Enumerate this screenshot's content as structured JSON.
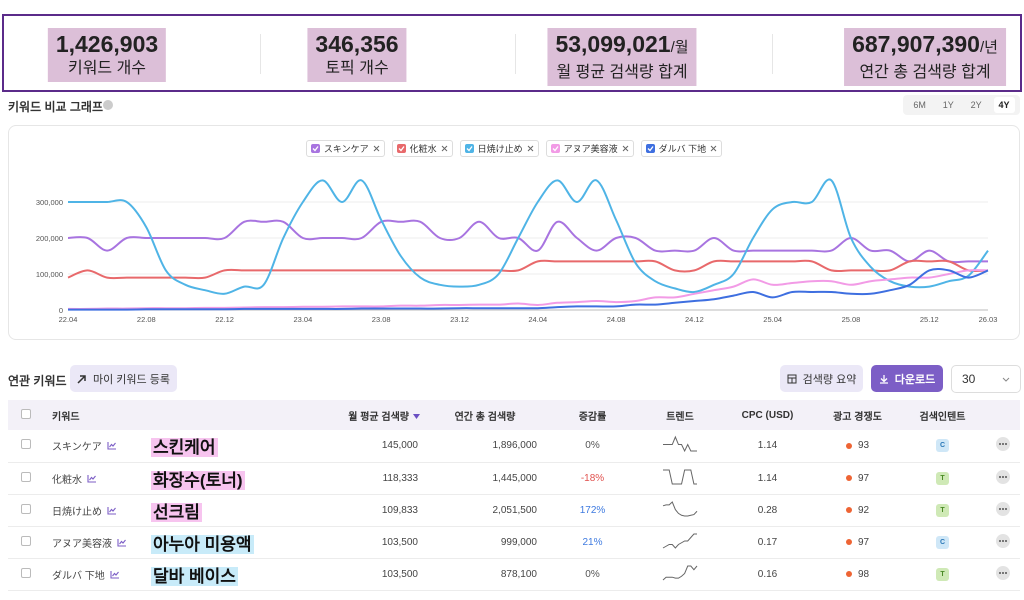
{
  "stats": [
    {
      "value": "1,426,903",
      "label": "키워드 개수"
    },
    {
      "value": "346,356",
      "label": "토픽 개수"
    },
    {
      "value": "53,099,021",
      "unit": "/월",
      "label": "월 평균 검색량 합계"
    },
    {
      "value": "687,907,390",
      "unit": "/년",
      "label": "연간 총 검색량 합계"
    }
  ],
  "graph_panel": {
    "title": "키워드 비교 그래프",
    "ranges": [
      "6M",
      "1Y",
      "2Y",
      "4Y"
    ],
    "active_range": "4Y"
  },
  "chart_data": {
    "type": "line",
    "categories": [
      "22.04",
      null,
      null,
      null,
      "22.08",
      null,
      null,
      null,
      "22.12",
      null,
      null,
      null,
      "23.04",
      null,
      null,
      null,
      "23.08",
      null,
      null,
      null,
      "23.12",
      null,
      null,
      null,
      "24.04",
      null,
      null,
      null,
      "24.08",
      null,
      null,
      null,
      "24.12",
      null,
      null,
      null,
      "25.04",
      null,
      null,
      null,
      "25.08",
      null,
      null,
      null,
      "25.12",
      null,
      null,
      "26.03"
    ],
    "series": [
      {
        "name": "スキンケア",
        "color": "#a874e0",
        "values": [
          200000,
          200000,
          165000,
          200000,
          200000,
          200000,
          200000,
          200000,
          200000,
          245000,
          245000,
          245000,
          200000,
          200000,
          200000,
          200000,
          245000,
          245000,
          245000,
          200000,
          200000,
          245000,
          200000,
          200000,
          165000,
          245000,
          200000,
          165000,
          200000,
          200000,
          165000,
          165000,
          165000,
          200000,
          165000,
          165000,
          165000,
          165000,
          165000,
          165000,
          200000,
          165000,
          165000,
          135000,
          165000,
          135000,
          135000,
          135000
        ]
      },
      {
        "name": "化粧水",
        "color": "#e8696b",
        "values": [
          90000,
          110000,
          90000,
          90000,
          90000,
          90000,
          90000,
          90000,
          110000,
          110000,
          110000,
          110000,
          110000,
          110000,
          110000,
          110000,
          110000,
          110000,
          110000,
          110000,
          110000,
          110000,
          110000,
          110000,
          135000,
          135000,
          135000,
          135000,
          135000,
          135000,
          135000,
          110000,
          110000,
          135000,
          135000,
          135000,
          135000,
          135000,
          135000,
          110000,
          110000,
          110000,
          110000,
          135000,
          135000,
          135000,
          110000,
          110000
        ]
      },
      {
        "name": "日焼け止め",
        "color": "#4fb4e6",
        "values": [
          300000,
          300000,
          300000,
          300000,
          230000,
          110000,
          70000,
          55000,
          45000,
          65000,
          70000,
          200000,
          300000,
          360000,
          300000,
          360000,
          250000,
          150000,
          90000,
          70000,
          65000,
          70000,
          100000,
          200000,
          300000,
          360000,
          300000,
          360000,
          250000,
          130000,
          80000,
          60000,
          50000,
          70000,
          100000,
          200000,
          280000,
          300000,
          300000,
          360000,
          200000,
          120000,
          80000,
          65000,
          65000,
          80000,
          95000,
          165000
        ]
      },
      {
        "name": "アヌア美容液",
        "color": "#f29be6",
        "values": [
          3000,
          3000,
          4000,
          4000,
          5000,
          5000,
          5000,
          6000,
          6000,
          7000,
          8000,
          8000,
          9000,
          9000,
          10000,
          10000,
          10000,
          12000,
          12000,
          14000,
          14000,
          15000,
          15000,
          18000,
          14000,
          20000,
          22000,
          25000,
          22000,
          25000,
          35000,
          35000,
          45000,
          55000,
          65000,
          85000,
          70000,
          75000,
          80000,
          80000,
          70000,
          80000,
          85000,
          90000,
          90000,
          100000,
          110000,
          110000
        ]
      },
      {
        "name": "ダルバ 下地",
        "color": "#3e6fe0",
        "values": [
          1000,
          1000,
          1000,
          1000,
          2000,
          2000,
          2000,
          2000,
          2000,
          3000,
          3000,
          3000,
          3000,
          3000,
          3000,
          4000,
          4000,
          4000,
          4000,
          4000,
          5000,
          5000,
          5000,
          5000,
          5000,
          8000,
          10000,
          10000,
          10000,
          15000,
          15000,
          20000,
          25000,
          30000,
          40000,
          50000,
          35000,
          50000,
          50000,
          50000,
          45000,
          45000,
          55000,
          70000,
          110000,
          110000,
          90000,
          110000
        ]
      }
    ],
    "ylim": [
      0,
      370000
    ],
    "yticks": [
      0,
      {
        "value": 100000,
        "label": "100,000"
      },
      {
        "value": 200000,
        "label": "200,000"
      },
      {
        "value": 300000,
        "label": "300,000"
      }
    ],
    "grid": true
  },
  "related": {
    "title": "연관 키워드",
    "my_keywords_button": "마이 키워드 등록",
    "summary_button": "검색량 요약",
    "download_button": "다운로드",
    "page_size": "30"
  },
  "table": {
    "columns": [
      "키워드",
      "월 평균 검색량",
      "연간 총 검색량",
      "증감률",
      "트렌드",
      "CPC (USD)",
      "광고 경쟁도",
      "검색인텐트"
    ],
    "rows": [
      {
        "keyword": "スキンケア",
        "note": "스킨케어",
        "monthly": "145,000",
        "yearly": "1,896,000",
        "change": "0%",
        "cpc": "1.14",
        "competition": "93",
        "intent": "C"
      },
      {
        "keyword": "化粧水",
        "note": "화장수(토너)",
        "monthly": "118,333",
        "yearly": "1,445,000",
        "change": "-18%",
        "cpc": "1.14",
        "competition": "97",
        "intent": "T"
      },
      {
        "keyword": "日焼け止め",
        "note": "선크림",
        "monthly": "109,833",
        "yearly": "2,051,500",
        "change": "172%",
        "cpc": "0.28",
        "competition": "92",
        "intent": "T"
      },
      {
        "keyword": "アヌア美容液",
        "note": "아누아 미용액",
        "monthly": "103,500",
        "yearly": "999,000",
        "change": "21%",
        "cpc": "0.17",
        "competition": "97",
        "intent": "C"
      },
      {
        "keyword": "ダルバ 下地",
        "note": "달바 베이스",
        "monthly": "103,500",
        "yearly": "878,100",
        "change": "0%",
        "cpc": "0.16",
        "competition": "98",
        "intent": "T"
      }
    ]
  }
}
